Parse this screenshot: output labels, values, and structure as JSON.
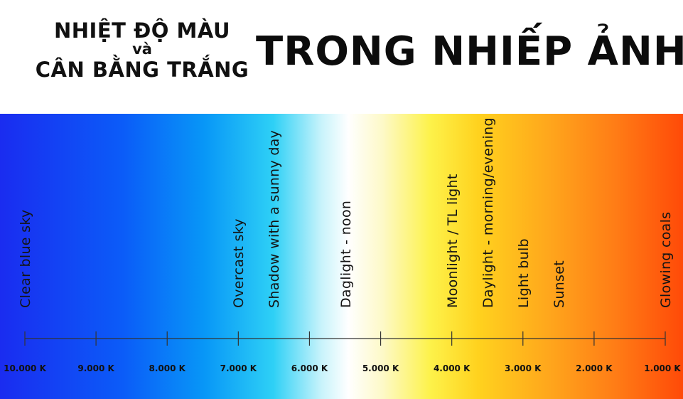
{
  "header": {
    "title_line1": "NHIỆT ĐỘ MÀU",
    "title_line2": "và",
    "title_line3": "CÂN BẰNG TRẮNG",
    "title_right": "TRONG NHIẾP ẢNH"
  },
  "scale": {
    "ticks": [
      {
        "value": 10000,
        "label": "10.000 K"
      },
      {
        "value": 9000,
        "label": "9.000 K"
      },
      {
        "value": 8000,
        "label": "8.000 K"
      },
      {
        "value": 7000,
        "label": "7.000 K"
      },
      {
        "value": 6000,
        "label": "6.000 K"
      },
      {
        "value": 5000,
        "label": "5.000 K"
      },
      {
        "value": 4000,
        "label": "4.000 K"
      },
      {
        "value": 3000,
        "label": "3.000 K"
      },
      {
        "value": 2000,
        "label": "2.000 K"
      },
      {
        "value": 1000,
        "label": "1.000 K"
      }
    ]
  },
  "light_sources": [
    {
      "label": "Clear blue sky",
      "kelvin": 10000
    },
    {
      "label": "Overcast sky",
      "kelvin": 7000
    },
    {
      "label": "Shadow with a sunny day",
      "kelvin": 6500
    },
    {
      "label": "Daglight - noon",
      "kelvin": 5500
    },
    {
      "label": "Moonlight / TL light",
      "kelvin": 4000
    },
    {
      "label": "Daylight - morning/evening",
      "kelvin": 3500
    },
    {
      "label": "Light bulb",
      "kelvin": 3000
    },
    {
      "label": "Sunset",
      "kelvin": 2500
    },
    {
      "label": "Glowing coals",
      "kelvin": 1000
    }
  ]
}
